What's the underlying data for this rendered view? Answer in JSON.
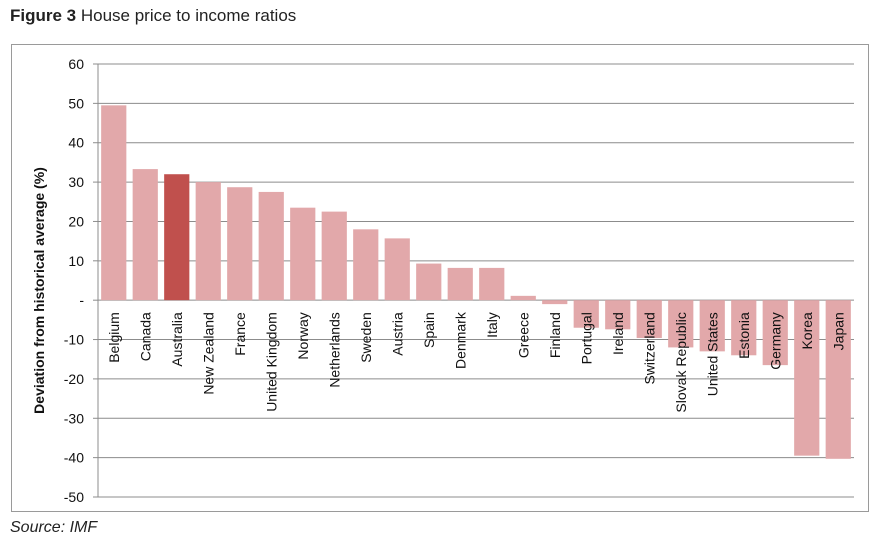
{
  "figure": {
    "label": "Figure 3",
    "title": "House price to income ratios",
    "source": "Source: IMF"
  },
  "chart_data": {
    "type": "bar",
    "title": "House price to income ratios",
    "xlabel": "",
    "ylabel": "Deviation from historical average (%)",
    "ylim": [
      -50,
      60
    ],
    "yticks": [
      60,
      50,
      40,
      30,
      20,
      10,
      0,
      -10,
      -20,
      -30,
      -40,
      -50
    ],
    "ytick_labels": [
      "60",
      "50",
      "40",
      "30",
      "20",
      "10",
      "-",
      "-10",
      "-20",
      "-30",
      "-40",
      "-50"
    ],
    "grid": true,
    "legend": "none",
    "highlight": "Australia",
    "colors": {
      "bar": "#e2a8aa",
      "highlight": "#c0504d",
      "grid": "#8c8c8c",
      "axis": "#8c8c8c"
    },
    "categories": [
      "Belgium",
      "Canada",
      "Australia",
      "New Zealand",
      "France",
      "United Kingdom",
      "Norway",
      "Netherlands",
      "Sweden",
      "Austria",
      "Spain",
      "Denmark",
      "Italy",
      "Greece",
      "Finland",
      "Portugal",
      "Ireland",
      "Switzerland",
      "Slovak Republic",
      "United States",
      "Estonia",
      "Germany",
      "Korea",
      "Japan"
    ],
    "values": [
      49.5,
      33.3,
      32,
      30,
      28.7,
      27.5,
      23.5,
      22.5,
      18,
      15.7,
      9.3,
      8.2,
      8.2,
      1.1,
      -1,
      -7,
      -7.4,
      -9.6,
      -12,
      -13,
      -14,
      -16.5,
      -39.5,
      -40.3
    ]
  }
}
